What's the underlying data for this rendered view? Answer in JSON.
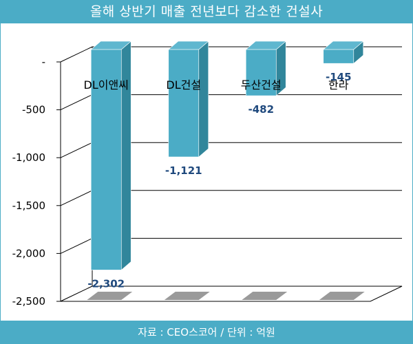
{
  "title": "올해 상반기 매출 전년보다 감소한 건설사",
  "source": "자료 : CEO스코어 / 단위 : 억원",
  "colors": {
    "accent": "#4bacc6",
    "bar_front": "#4bacc6",
    "bar_side": "#31869b",
    "bar_top": "#5fb7cf",
    "value_label": "#1f497d",
    "grid": "#000000"
  },
  "chart_data": {
    "type": "bar",
    "style": "3d-column",
    "categories": [
      "DL이앤씨",
      "DL건설",
      "두산건설",
      "한라"
    ],
    "values": [
      -2302,
      -1121,
      -482,
      -145
    ],
    "value_labels": [
      "-2,302",
      "-1,121",
      "-482",
      "-145"
    ],
    "y_ticks": [
      0,
      -500,
      -1000,
      -1500,
      -2000,
      -2500
    ],
    "y_tick_labels": [
      "-",
      "-500",
      "-1,000",
      "-1,500",
      "-2,000",
      "-2,500"
    ],
    "ylim": [
      -2500,
      0
    ],
    "grid": true,
    "legend": "none"
  }
}
